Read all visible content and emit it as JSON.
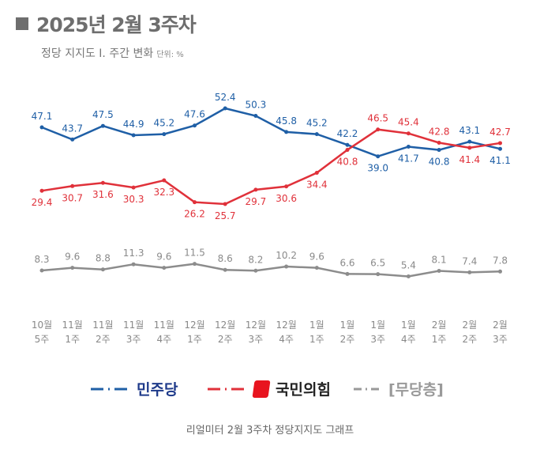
{
  "title": "2025년 2월 3주차",
  "subtitle": "정당 지지도 Ⅰ. 주간 변화",
  "unit": "단위: %",
  "caption": "리얼미터 2월 3주차 정당지지도 그래프",
  "chart_data": {
    "type": "line",
    "categories": [
      [
        "10월",
        "5주"
      ],
      [
        "11월",
        "1주"
      ],
      [
        "11월",
        "2주"
      ],
      [
        "11월",
        "3주"
      ],
      [
        "11월",
        "4주"
      ],
      [
        "12월",
        "1주"
      ],
      [
        "12월",
        "2주"
      ],
      [
        "12월",
        "3주"
      ],
      [
        "12월",
        "4주"
      ],
      [
        "1월",
        "1주"
      ],
      [
        "1월",
        "2주"
      ],
      [
        "1월",
        "3주"
      ],
      [
        "1월",
        "4주"
      ],
      [
        "2월",
        "1주"
      ],
      [
        "2월",
        "2주"
      ],
      [
        "2월",
        "3주"
      ]
    ],
    "series": [
      {
        "name": "민주당",
        "color": "#1f5fa6",
        "values": [
          47.1,
          43.7,
          47.5,
          44.9,
          45.2,
          47.6,
          52.4,
          50.3,
          45.8,
          45.2,
          42.2,
          39.0,
          41.7,
          40.8,
          43.1,
          41.1
        ]
      },
      {
        "name": "국민의힘",
        "color": "#e0313a",
        "values": [
          29.4,
          30.7,
          31.6,
          30.3,
          32.3,
          26.2,
          25.7,
          29.7,
          30.6,
          34.4,
          40.8,
          46.5,
          45.4,
          42.8,
          41.4,
          42.7
        ]
      },
      {
        "name": "[무당층]",
        "color": "#8c8c8c",
        "values": [
          8.3,
          9.6,
          8.8,
          11.3,
          9.6,
          11.5,
          8.6,
          8.2,
          10.2,
          9.6,
          6.6,
          6.5,
          5.4,
          8.1,
          7.4,
          7.8
        ]
      }
    ],
    "grid": false,
    "legend": "bottom"
  }
}
